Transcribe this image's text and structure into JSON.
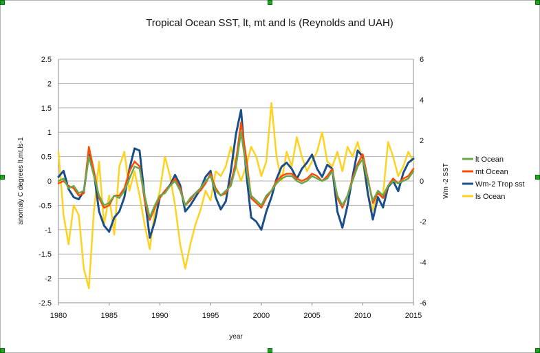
{
  "chart_data": {
    "type": "line",
    "title": "Tropical Ocean SST, lt, mt and ls (Reynolds and UAH)",
    "xlabel": "year",
    "ylabel": "anomaly C degrees lt,mt,ls-1",
    "y2label": "Wm -2 SST",
    "xlim": [
      1980,
      2015
    ],
    "ylim": [
      -2.5,
      2.5
    ],
    "y2lim": [
      -6,
      6
    ],
    "x_ticks": [
      "1980",
      "1985",
      "1990",
      "1995",
      "2000",
      "2005",
      "2010",
      "2015"
    ],
    "y_ticks": [
      "2.5",
      "2",
      "1.5",
      "1",
      "0.5",
      "0",
      "-0.5",
      "-1",
      "-1.5",
      "-2",
      "-2.5"
    ],
    "y2_ticks": [
      "6",
      "4",
      "2",
      "0",
      "-2",
      "-4",
      "-6"
    ],
    "grid": true,
    "legend_position": "right",
    "series": [
      {
        "name": "lt  Ocean",
        "axis": "left",
        "color": "#6aa84f",
        "points": [
          [
            1980,
            0.0
          ],
          [
            1980.5,
            0.05
          ],
          [
            1981,
            -0.15
          ],
          [
            1981.5,
            -0.1
          ],
          [
            1982,
            -0.25
          ],
          [
            1982.5,
            -0.2
          ],
          [
            1983,
            0.5
          ],
          [
            1983.5,
            0.1
          ],
          [
            1984,
            -0.3
          ],
          [
            1984.5,
            -0.5
          ],
          [
            1985,
            -0.45
          ],
          [
            1985.5,
            -0.3
          ],
          [
            1986,
            -0.35
          ],
          [
            1986.5,
            -0.2
          ],
          [
            1987,
            0.05
          ],
          [
            1987.5,
            0.3
          ],
          [
            1988,
            0.25
          ],
          [
            1988.5,
            -0.3
          ],
          [
            1989,
            -0.75
          ],
          [
            1989.5,
            -0.5
          ],
          [
            1990,
            -0.3
          ],
          [
            1990.5,
            -0.25
          ],
          [
            1991,
            -0.1
          ],
          [
            1991.5,
            0.0
          ],
          [
            1992,
            -0.2
          ],
          [
            1992.5,
            -0.5
          ],
          [
            1993,
            -0.35
          ],
          [
            1993.5,
            -0.25
          ],
          [
            1994,
            -0.15
          ],
          [
            1994.5,
            0.0
          ],
          [
            1995,
            0.1
          ],
          [
            1995.5,
            -0.2
          ],
          [
            1996,
            -0.3
          ],
          [
            1996.5,
            -0.2
          ],
          [
            1997,
            -0.1
          ],
          [
            1997.5,
            0.3
          ],
          [
            1998,
            1.0
          ],
          [
            1998.5,
            0.3
          ],
          [
            1999,
            -0.3
          ],
          [
            1999.5,
            -0.4
          ],
          [
            2000,
            -0.5
          ],
          [
            2000.5,
            -0.3
          ],
          [
            2001,
            -0.2
          ],
          [
            2001.5,
            -0.05
          ],
          [
            2002,
            0.05
          ],
          [
            2002.5,
            0.1
          ],
          [
            2003,
            0.1
          ],
          [
            2003.5,
            0.0
          ],
          [
            2004,
            -0.05
          ],
          [
            2004.5,
            0.0
          ],
          [
            2005,
            0.1
          ],
          [
            2005.5,
            0.05
          ],
          [
            2006,
            0.0
          ],
          [
            2006.5,
            0.05
          ],
          [
            2007,
            0.2
          ],
          [
            2007.5,
            -0.3
          ],
          [
            2008,
            -0.5
          ],
          [
            2008.5,
            -0.3
          ],
          [
            2009,
            0.0
          ],
          [
            2009.5,
            0.3
          ],
          [
            2010,
            0.45
          ],
          [
            2010.5,
            0.0
          ],
          [
            2011,
            -0.4
          ],
          [
            2011.5,
            -0.2
          ],
          [
            2012,
            -0.3
          ],
          [
            2012.5,
            -0.1
          ],
          [
            2013,
            0.0
          ],
          [
            2013.5,
            -0.05
          ],
          [
            2014,
            0.0
          ],
          [
            2014.5,
            0.05
          ],
          [
            2015,
            0.2
          ]
        ]
      },
      {
        "name": "mt  Ocean",
        "axis": "left",
        "color": "#ff4b00",
        "points": [
          [
            1980,
            -0.05
          ],
          [
            1980.5,
            0.0
          ],
          [
            1981,
            -0.1
          ],
          [
            1981.5,
            -0.15
          ],
          [
            1982,
            -0.3
          ],
          [
            1982.5,
            -0.25
          ],
          [
            1983,
            0.7
          ],
          [
            1983.5,
            0.2
          ],
          [
            1984,
            -0.35
          ],
          [
            1984.5,
            -0.55
          ],
          [
            1985,
            -0.5
          ],
          [
            1985.5,
            -0.3
          ],
          [
            1986,
            -0.3
          ],
          [
            1986.5,
            -0.15
          ],
          [
            1987,
            0.2
          ],
          [
            1987.5,
            0.4
          ],
          [
            1988,
            0.3
          ],
          [
            1988.5,
            -0.4
          ],
          [
            1989,
            -0.8
          ],
          [
            1989.5,
            -0.55
          ],
          [
            1990,
            -0.35
          ],
          [
            1990.5,
            -0.2
          ],
          [
            1991,
            -0.1
          ],
          [
            1991.5,
            0.05
          ],
          [
            1992,
            -0.15
          ],
          [
            1992.5,
            -0.5
          ],
          [
            1993,
            -0.4
          ],
          [
            1993.5,
            -0.25
          ],
          [
            1994,
            -0.2
          ],
          [
            1994.5,
            -0.05
          ],
          [
            1995,
            0.15
          ],
          [
            1995.5,
            -0.15
          ],
          [
            1996,
            -0.3
          ],
          [
            1996.5,
            -0.25
          ],
          [
            1997,
            -0.05
          ],
          [
            1997.5,
            0.4
          ],
          [
            1998,
            1.2
          ],
          [
            1998.5,
            0.5
          ],
          [
            1999,
            -0.35
          ],
          [
            1999.5,
            -0.45
          ],
          [
            2000,
            -0.55
          ],
          [
            2000.5,
            -0.35
          ],
          [
            2001,
            -0.2
          ],
          [
            2001.5,
            0.0
          ],
          [
            2002,
            0.1
          ],
          [
            2002.5,
            0.15
          ],
          [
            2003,
            0.15
          ],
          [
            2003.5,
            0.05
          ],
          [
            2004,
            0.0
          ],
          [
            2004.5,
            0.05
          ],
          [
            2005,
            0.15
          ],
          [
            2005.5,
            0.1
          ],
          [
            2006,
            0.0
          ],
          [
            2006.5,
            0.1
          ],
          [
            2007,
            0.25
          ],
          [
            2007.5,
            -0.35
          ],
          [
            2008,
            -0.55
          ],
          [
            2008.5,
            -0.3
          ],
          [
            2009,
            0.05
          ],
          [
            2009.5,
            0.35
          ],
          [
            2010,
            0.55
          ],
          [
            2010.5,
            0.05
          ],
          [
            2011,
            -0.45
          ],
          [
            2011.5,
            -0.25
          ],
          [
            2012,
            -0.35
          ],
          [
            2012.5,
            -0.1
          ],
          [
            2013,
            0.05
          ],
          [
            2013.5,
            -0.05
          ],
          [
            2014,
            0.05
          ],
          [
            2014.5,
            0.1
          ],
          [
            2015,
            0.25
          ]
        ]
      },
      {
        "name": "Wm-2 Trop sst",
        "axis": "right",
        "color": "#1b4f8a",
        "points": [
          [
            1980,
            0.2
          ],
          [
            1980.5,
            0.5
          ],
          [
            1981,
            -0.4
          ],
          [
            1981.5,
            -0.8
          ],
          [
            1982,
            -0.9
          ],
          [
            1982.5,
            -0.5
          ],
          [
            1983,
            1.3
          ],
          [
            1983.5,
            0.4
          ],
          [
            1984,
            -1.5
          ],
          [
            1984.5,
            -2.2
          ],
          [
            1985,
            -2.5
          ],
          [
            1985.5,
            -1.8
          ],
          [
            1986,
            -1.5
          ],
          [
            1986.5,
            -0.8
          ],
          [
            1987,
            0.6
          ],
          [
            1987.5,
            1.6
          ],
          [
            1988,
            1.5
          ],
          [
            1988.5,
            -0.8
          ],
          [
            1989,
            -2.8
          ],
          [
            1989.5,
            -2.0
          ],
          [
            1990,
            -0.8
          ],
          [
            1990.5,
            -0.5
          ],
          [
            1991,
            -0.2
          ],
          [
            1991.5,
            0.3
          ],
          [
            1992,
            -0.2
          ],
          [
            1992.5,
            -1.5
          ],
          [
            1993,
            -1.2
          ],
          [
            1993.5,
            -0.8
          ],
          [
            1994,
            -0.4
          ],
          [
            1994.5,
            0.2
          ],
          [
            1995,
            0.5
          ],
          [
            1995.5,
            -0.8
          ],
          [
            1996,
            -1.4
          ],
          [
            1996.5,
            -1.0
          ],
          [
            1997,
            0.5
          ],
          [
            1997.5,
            2.3
          ],
          [
            1998,
            3.5
          ],
          [
            1998.5,
            0.5
          ],
          [
            1999,
            -1.8
          ],
          [
            1999.5,
            -2.0
          ],
          [
            2000,
            -2.4
          ],
          [
            2000.5,
            -1.5
          ],
          [
            2001,
            -0.8
          ],
          [
            2001.5,
            0.1
          ],
          [
            2002,
            0.7
          ],
          [
            2002.5,
            0.9
          ],
          [
            2003,
            0.6
          ],
          [
            2003.5,
            0.1
          ],
          [
            2004,
            0.6
          ],
          [
            2004.5,
            0.9
          ],
          [
            2005,
            1.3
          ],
          [
            2005.5,
            0.6
          ],
          [
            2006,
            0.2
          ],
          [
            2006.5,
            0.8
          ],
          [
            2007,
            0.6
          ],
          [
            2007.5,
            -1.5
          ],
          [
            2008,
            -2.3
          ],
          [
            2008.5,
            -1.2
          ],
          [
            2009,
            0.2
          ],
          [
            2009.5,
            1.5
          ],
          [
            2010,
            1.2
          ],
          [
            2010.5,
            -0.6
          ],
          [
            2011,
            -1.9
          ],
          [
            2011.5,
            -0.8
          ],
          [
            2012,
            -1.3
          ],
          [
            2012.5,
            -0.3
          ],
          [
            2013,
            0.0
          ],
          [
            2013.5,
            -0.5
          ],
          [
            2014,
            0.4
          ],
          [
            2014.5,
            0.9
          ],
          [
            2015,
            1.1
          ]
        ]
      },
      {
        "name": "ls  Ocean",
        "axis": "left",
        "color": "#ffd21f",
        "points": [
          [
            1980,
            0.6
          ],
          [
            1980.5,
            -0.7
          ],
          [
            1981,
            -1.3
          ],
          [
            1981.5,
            -0.5
          ],
          [
            1982,
            -0.7
          ],
          [
            1982.5,
            -1.8
          ],
          [
            1983,
            -2.2
          ],
          [
            1983.5,
            -0.6
          ],
          [
            1984,
            0.4
          ],
          [
            1984.5,
            -0.9
          ],
          [
            1985,
            -0.3
          ],
          [
            1985.5,
            -1.1
          ],
          [
            1986,
            0.3
          ],
          [
            1986.5,
            0.6
          ],
          [
            1987,
            -0.2
          ],
          [
            1987.5,
            0.2
          ],
          [
            1988,
            -0.3
          ],
          [
            1988.5,
            -0.9
          ],
          [
            1989,
            -1.4
          ],
          [
            1989.5,
            -0.6
          ],
          [
            1990,
            -0.2
          ],
          [
            1990.5,
            0.5
          ],
          [
            1991,
            0.1
          ],
          [
            1991.5,
            -0.5
          ],
          [
            1992,
            -1.3
          ],
          [
            1992.5,
            -1.8
          ],
          [
            1993,
            -1.3
          ],
          [
            1993.5,
            -0.9
          ],
          [
            1994,
            -0.6
          ],
          [
            1994.5,
            -0.2
          ],
          [
            1995,
            -0.4
          ],
          [
            1995.5,
            0.2
          ],
          [
            1996,
            0.1
          ],
          [
            1996.5,
            0.3
          ],
          [
            1997,
            0.7
          ],
          [
            1997.5,
            0.3
          ],
          [
            1998,
            0.0
          ],
          [
            1998.5,
            0.3
          ],
          [
            1999,
            0.7
          ],
          [
            1999.5,
            0.5
          ],
          [
            2000,
            0.1
          ],
          [
            2000.5,
            0.4
          ],
          [
            2001,
            1.6
          ],
          [
            2001.5,
            0.5
          ],
          [
            2002,
            0.0
          ],
          [
            2002.5,
            0.6
          ],
          [
            2003,
            0.3
          ],
          [
            2003.5,
            0.9
          ],
          [
            2004,
            0.5
          ],
          [
            2004.5,
            0.2
          ],
          [
            2005,
            0.4
          ],
          [
            2005.5,
            0.6
          ],
          [
            2006,
            1.0
          ],
          [
            2006.5,
            0.4
          ],
          [
            2007,
            0.3
          ],
          [
            2007.5,
            0.6
          ],
          [
            2008,
            0.2
          ],
          [
            2008.5,
            0.7
          ],
          [
            2009,
            0.5
          ],
          [
            2009.5,
            0.8
          ],
          [
            2010,
            0.4
          ],
          [
            2010.5,
            -0.3
          ],
          [
            2011,
            -0.6
          ],
          [
            2011.5,
            -0.2
          ],
          [
            2012,
            -0.3
          ],
          [
            2012.5,
            0.8
          ],
          [
            2013,
            0.5
          ],
          [
            2013.5,
            0.1
          ],
          [
            2014,
            0.3
          ],
          [
            2014.5,
            0.6
          ],
          [
            2015,
            0.4
          ]
        ]
      }
    ]
  }
}
